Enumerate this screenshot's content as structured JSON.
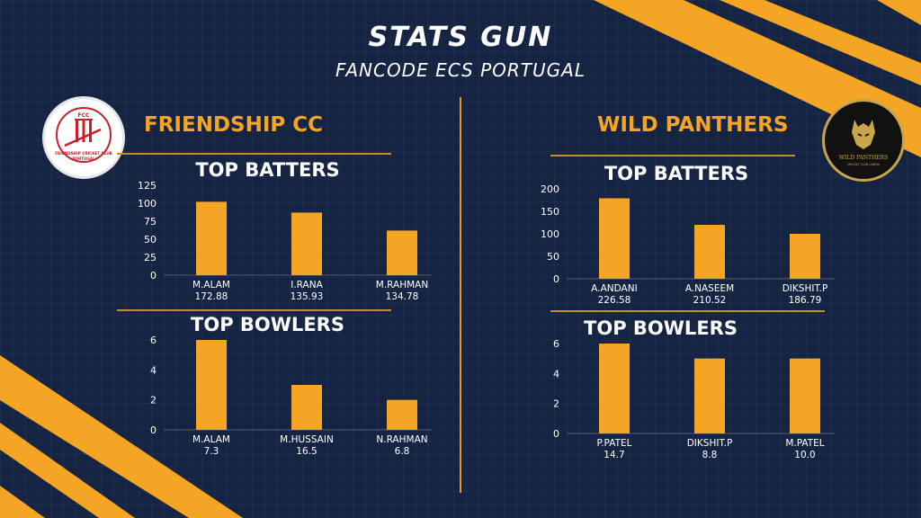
{
  "header": {
    "title": "STATS GUN",
    "subtitle": "FANCODE ECS PORTUGAL"
  },
  "teams": {
    "left": {
      "name": "FRIENDSHIP CC",
      "logo": {
        "text_top": "FCC",
        "text_ring": "FRIENDSHIP CRICKET CLUB",
        "text_bottom": "PORTUGAL"
      },
      "batters_title": "TOP BATTERS",
      "bowlers_title": "TOP BOWLERS"
    },
    "right": {
      "name": "WILD PANTHERS",
      "logo": {
        "text_main": "WILD PANTHERS",
        "text_sub": "CRICKET CLUB LISBON"
      },
      "batters_title": "TOP BATTERS",
      "bowlers_title": "TOP BOWLERS"
    }
  },
  "colors": {
    "background": "#152443",
    "accent": "#f5a524",
    "divider": "#e0962c",
    "text": "#ffffff"
  },
  "chart_data": [
    {
      "type": "bar",
      "title": "TOP BATTERS",
      "categories": [
        "M.ALAM",
        "I.RANA",
        "M.RAHMAN"
      ],
      "category_sublabels": [
        "172.88",
        "135.93",
        "134.78"
      ],
      "values": [
        102,
        87,
        62
      ],
      "yticks": [
        0,
        25,
        50,
        75,
        100,
        125
      ],
      "ylim": [
        0,
        125
      ]
    },
    {
      "type": "bar",
      "title": "TOP BOWLERS",
      "categories": [
        "M.ALAM",
        "M.HUSSAIN",
        "N.RAHMAN"
      ],
      "category_sublabels": [
        "7.3",
        "16.5",
        "6.8"
      ],
      "values": [
        6,
        3,
        2
      ],
      "yticks": [
        0,
        2,
        4,
        6
      ],
      "ylim": [
        0,
        6
      ]
    },
    {
      "type": "bar",
      "title": "TOP BATTERS",
      "categories": [
        "A.ANDANI",
        "A.NASEEM",
        "DIKSHIT.P"
      ],
      "category_sublabels": [
        "226.58",
        "210.52",
        "186.79"
      ],
      "values": [
        179,
        120,
        100
      ],
      "yticks": [
        0,
        50,
        100,
        150,
        200
      ],
      "ylim": [
        0,
        200
      ]
    },
    {
      "type": "bar",
      "title": "TOP BOWLERS",
      "categories": [
        "P.PATEL",
        "DIKSHIT.P",
        "M.PATEL"
      ],
      "category_sublabels": [
        "14.7",
        "8.8",
        "10.0"
      ],
      "values": [
        6,
        5,
        5
      ],
      "yticks": [
        0,
        2,
        4,
        6
      ],
      "ylim": [
        0,
        6
      ]
    }
  ]
}
